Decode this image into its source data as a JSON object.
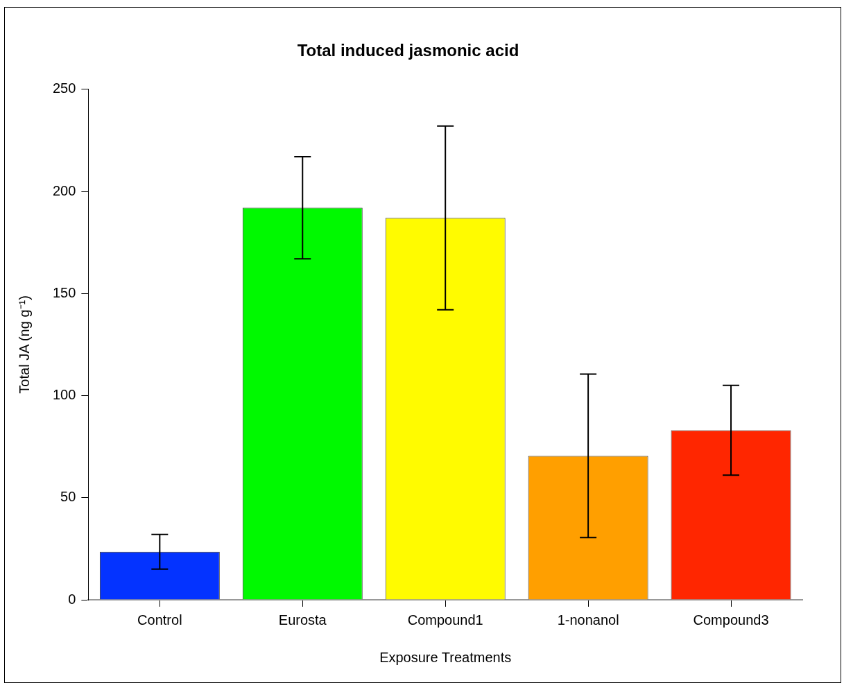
{
  "chart_data": {
    "type": "bar",
    "title": "Total induced jasmonic acid",
    "xlabel": "Exposure Treatments",
    "ylabel": "Total JA (ng g⁻¹)",
    "categories": [
      "Control",
      "Eurosta",
      "Compound1",
      "1-nonanol",
      "Compound3"
    ],
    "values": [
      23.5,
      192,
      187,
      70.5,
      83
    ],
    "colors": [
      "#0433ff",
      "#00f900",
      "#fffb00",
      "#ff9f00",
      "#ff2600"
    ],
    "errors": [
      8.5,
      25,
      45,
      40,
      22
    ],
    "ylim": [
      0,
      250
    ],
    "yticks": [
      0,
      50,
      100,
      150,
      200,
      250
    ],
    "grid": false,
    "legend": false
  }
}
